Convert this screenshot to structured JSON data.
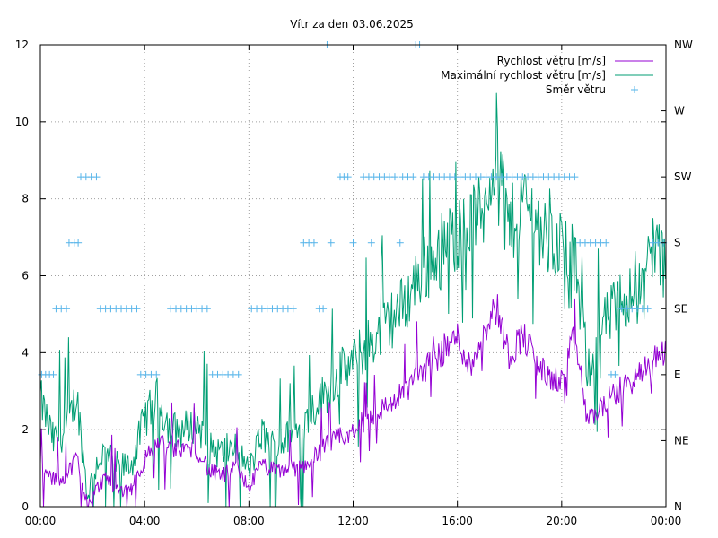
{
  "chart_data": {
    "type": "line",
    "title": "Vítr za den 03.06.2025",
    "x_ticks": [
      "00:00",
      "04:00",
      "08:00",
      "12:00",
      "16:00",
      "20:00",
      "00:00"
    ],
    "x_range_hours": [
      0,
      24
    ],
    "ylim": [
      0,
      12
    ],
    "y_ticks": [
      "0",
      "2",
      "4",
      "6",
      "8",
      "10",
      "12"
    ],
    "y2_ticks": [
      "N",
      "NE",
      "E",
      "SE",
      "S",
      "SW",
      "W",
      "NW"
    ],
    "y2_range": [
      0,
      7
    ],
    "grid": true,
    "legend_position": "top-right",
    "colors": {
      "speed": "#9400d3",
      "gust": "#009e73",
      "direction": "#56b4e9"
    },
    "series": [
      {
        "name": "Rychlost větru [m/s]",
        "kind": "line",
        "x": [
          0.0,
          0.5,
          1.0,
          1.4,
          1.6,
          1.8,
          2.2,
          2.5,
          3.0,
          3.5,
          4.0,
          4.5,
          5.0,
          5.5,
          6.0,
          6.5,
          7.0,
          7.5,
          8.0,
          8.5,
          9.0,
          9.5,
          10.0,
          10.5,
          11.0,
          11.5,
          12.0,
          12.5,
          13.0,
          13.5,
          14.0,
          14.5,
          15.0,
          15.5,
          16.0,
          16.5,
          17.0,
          17.5,
          18.0,
          18.5,
          19.0,
          19.5,
          20.0,
          20.5,
          21.0,
          21.5,
          22.0,
          22.5,
          23.0,
          23.5,
          24.0
        ],
        "y": [
          1.0,
          0.7,
          0.8,
          1.3,
          0.5,
          0.1,
          0.5,
          0.8,
          0.4,
          0.5,
          1.2,
          1.7,
          1.5,
          1.5,
          1.5,
          0.9,
          0.8,
          1.0,
          0.5,
          1.1,
          0.9,
          1.0,
          1.0,
          1.3,
          1.6,
          1.8,
          1.9,
          2.3,
          2.5,
          2.7,
          3.0,
          3.5,
          3.7,
          4.1,
          4.4,
          3.6,
          4.6,
          5.2,
          3.9,
          4.5,
          3.8,
          3.3,
          3.3,
          4.4,
          2.2,
          2.6,
          2.9,
          3.2,
          3.4,
          3.8,
          4.1
        ]
      },
      {
        "name": "Maximální rychlost větru [m/s]",
        "kind": "line",
        "x": [
          0.0,
          0.5,
          1.0,
          1.4,
          1.6,
          1.8,
          2.2,
          2.5,
          3.0,
          3.5,
          4.0,
          4.5,
          5.0,
          5.5,
          6.0,
          6.5,
          7.0,
          7.5,
          8.0,
          8.5,
          9.0,
          9.5,
          10.0,
          10.5,
          11.0,
          11.5,
          12.0,
          12.5,
          13.0,
          13.5,
          14.0,
          14.5,
          15.0,
          15.5,
          16.0,
          16.5,
          17.0,
          17.5,
          18.0,
          18.5,
          19.0,
          19.5,
          20.0,
          20.5,
          21.0,
          21.5,
          22.0,
          22.5,
          23.0,
          23.5,
          24.0
        ],
        "y": [
          2.8,
          1.7,
          2.0,
          2.9,
          1.6,
          0.3,
          1.2,
          1.4,
          1.0,
          1.1,
          2.3,
          2.8,
          2.0,
          2.0,
          2.2,
          1.5,
          1.4,
          1.6,
          0.9,
          1.9,
          1.5,
          1.8,
          2.0,
          2.6,
          3.0,
          3.5,
          3.7,
          4.2,
          4.5,
          4.9,
          5.3,
          6.0,
          6.4,
          6.8,
          7.1,
          7.4,
          7.7,
          9.5,
          7.2,
          8.0,
          7.5,
          6.8,
          6.9,
          6.3,
          3.6,
          4.6,
          5.1,
          5.5,
          5.6,
          6.9,
          6.2
        ]
      },
      {
        "name": "Směr větru",
        "kind": "points",
        "axis": "y2",
        "points": [
          [
            0.05,
            2
          ],
          [
            0.2,
            2
          ],
          [
            0.35,
            2
          ],
          [
            0.5,
            2
          ],
          [
            0.6,
            3
          ],
          [
            0.8,
            3
          ],
          [
            1.0,
            3
          ],
          [
            1.1,
            4
          ],
          [
            1.3,
            4
          ],
          [
            1.45,
            4
          ],
          [
            1.55,
            5
          ],
          [
            1.75,
            5
          ],
          [
            1.95,
            5
          ],
          [
            2.15,
            5
          ],
          [
            2.3,
            3
          ],
          [
            2.5,
            3
          ],
          [
            2.7,
            3
          ],
          [
            2.9,
            3
          ],
          [
            3.1,
            3
          ],
          [
            3.3,
            3
          ],
          [
            3.5,
            3
          ],
          [
            3.7,
            3
          ],
          [
            3.85,
            2
          ],
          [
            4.05,
            2
          ],
          [
            4.25,
            2
          ],
          [
            4.45,
            2
          ],
          [
            5.0,
            3
          ],
          [
            5.2,
            3
          ],
          [
            5.4,
            3
          ],
          [
            5.6,
            3
          ],
          [
            5.8,
            3
          ],
          [
            6.0,
            3
          ],
          [
            6.2,
            3
          ],
          [
            6.4,
            3
          ],
          [
            6.6,
            2
          ],
          [
            6.8,
            2
          ],
          [
            7.0,
            2
          ],
          [
            7.2,
            2
          ],
          [
            7.4,
            2
          ],
          [
            7.6,
            2
          ],
          [
            8.1,
            3
          ],
          [
            8.3,
            3
          ],
          [
            8.5,
            3
          ],
          [
            8.7,
            3
          ],
          [
            8.9,
            3
          ],
          [
            9.1,
            3
          ],
          [
            9.3,
            3
          ],
          [
            9.5,
            3
          ],
          [
            9.7,
            3
          ],
          [
            10.1,
            4
          ],
          [
            10.3,
            4
          ],
          [
            10.5,
            4
          ],
          [
            10.7,
            3
          ],
          [
            10.85,
            3
          ],
          [
            11.0,
            7
          ],
          [
            11.15,
            4
          ],
          [
            11.5,
            5
          ],
          [
            11.65,
            5
          ],
          [
            11.8,
            5
          ],
          [
            12.0,
            4
          ],
          [
            12.4,
            5
          ],
          [
            12.6,
            5
          ],
          [
            12.8,
            5
          ],
          [
            13.0,
            5
          ],
          [
            13.2,
            5
          ],
          [
            13.4,
            5
          ],
          [
            13.6,
            5
          ],
          [
            12.7,
            4
          ],
          [
            13.8,
            4
          ],
          [
            13.9,
            5
          ],
          [
            14.1,
            5
          ],
          [
            14.3,
            5
          ],
          [
            14.4,
            7
          ],
          [
            14.55,
            7
          ],
          [
            14.7,
            5
          ],
          [
            14.9,
            5
          ],
          [
            15.1,
            5
          ],
          [
            15.3,
            5
          ],
          [
            15.5,
            5
          ],
          [
            15.7,
            5
          ],
          [
            15.9,
            5
          ],
          [
            16.1,
            5
          ],
          [
            16.3,
            5
          ],
          [
            16.5,
            5
          ],
          [
            16.7,
            5
          ],
          [
            16.9,
            5
          ],
          [
            17.1,
            5
          ],
          [
            17.3,
            5
          ],
          [
            17.5,
            5
          ],
          [
            17.7,
            5
          ],
          [
            17.9,
            5
          ],
          [
            18.1,
            5
          ],
          [
            18.3,
            5
          ],
          [
            18.5,
            5
          ],
          [
            18.7,
            5
          ],
          [
            18.9,
            5
          ],
          [
            19.1,
            5
          ],
          [
            19.3,
            5
          ],
          [
            19.5,
            5
          ],
          [
            19.7,
            5
          ],
          [
            19.9,
            5
          ],
          [
            20.1,
            5
          ],
          [
            20.3,
            5
          ],
          [
            20.5,
            5
          ],
          [
            20.7,
            4
          ],
          [
            20.9,
            4
          ],
          [
            21.1,
            4
          ],
          [
            21.3,
            4
          ],
          [
            21.5,
            4
          ],
          [
            21.7,
            4
          ],
          [
            21.9,
            2
          ],
          [
            22.05,
            2
          ],
          [
            22.3,
            3
          ],
          [
            22.5,
            3
          ],
          [
            22.7,
            3
          ],
          [
            22.9,
            3
          ],
          [
            23.1,
            3
          ],
          [
            23.3,
            3
          ],
          [
            23.5,
            4
          ],
          [
            23.7,
            4
          ],
          [
            23.9,
            4
          ]
        ]
      }
    ]
  }
}
